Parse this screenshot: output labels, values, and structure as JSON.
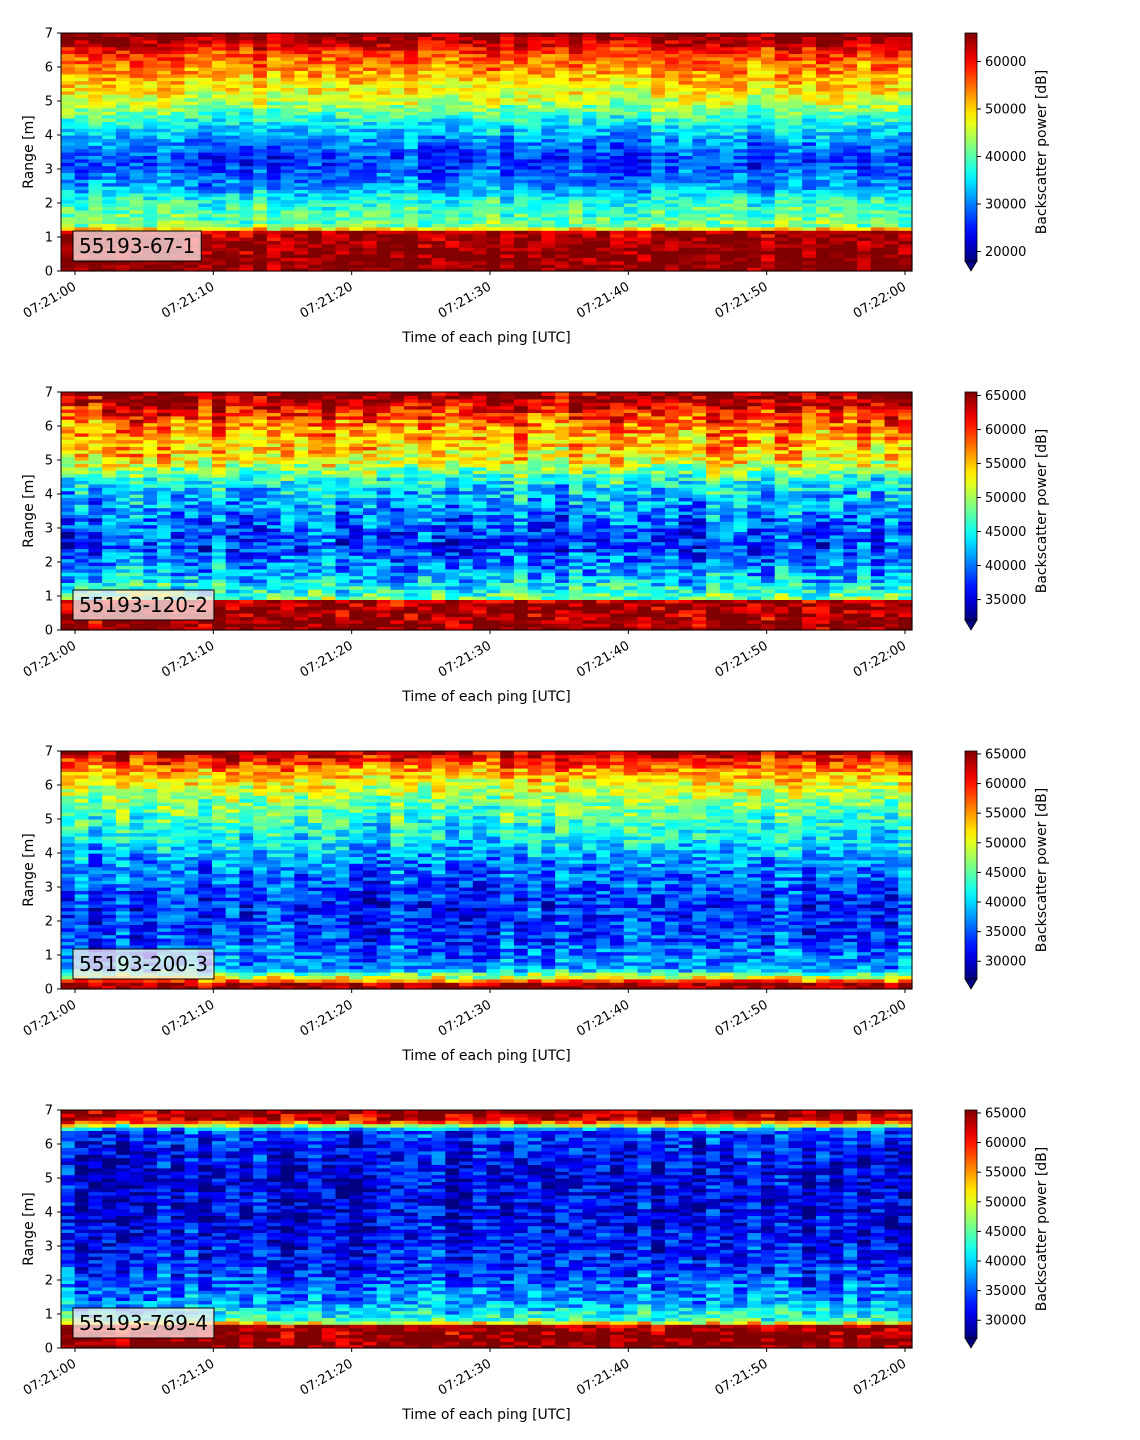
{
  "chart_data": [
    {
      "type": "heatmap",
      "sensor_label": "55193-67-1",
      "xlabel": "Time of each ping [UTC]",
      "ylabel": "Range [m]",
      "colorbar_label": "Backscatter power [dB]",
      "colormap": "jet",
      "x_ticks": [
        "07:21:00",
        "07:21:10",
        "07:21:20",
        "07:21:30",
        "07:21:40",
        "07:21:50",
        "07:22:00"
      ],
      "y_ticks": [
        0,
        1,
        2,
        3,
        4,
        5,
        6,
        7
      ],
      "ylim": [
        0,
        7
      ],
      "colorbar_ticks": [
        20000,
        30000,
        40000,
        50000,
        60000
      ],
      "clim": [
        18000,
        66000
      ],
      "profile": [
        {
          "range": 0.0,
          "value": 66000
        },
        {
          "range": 0.25,
          "value": 66000
        },
        {
          "range": 1.15,
          "value": 64000
        },
        {
          "range": 1.3,
          "value": 42000
        },
        {
          "range": 2.0,
          "value": 38000
        },
        {
          "range": 2.5,
          "value": 31000
        },
        {
          "range": 3.3,
          "value": 26000
        },
        {
          "range": 4.2,
          "value": 34000
        },
        {
          "range": 5.0,
          "value": 45000
        },
        {
          "range": 5.8,
          "value": 52000
        },
        {
          "range": 6.4,
          "value": 57000
        },
        {
          "range": 6.8,
          "value": 64000
        },
        {
          "range": 7.0,
          "value": 66000
        }
      ]
    },
    {
      "type": "heatmap",
      "sensor_label": "55193-120-2",
      "xlabel": "Time of each ping [UTC]",
      "ylabel": "Range [m]",
      "colorbar_label": "Backscatter power [dB]",
      "colormap": "jet",
      "x_ticks": [
        "07:21:00",
        "07:21:10",
        "07:21:20",
        "07:21:30",
        "07:21:40",
        "07:21:50",
        "07:22:00"
      ],
      "y_ticks": [
        0,
        1,
        2,
        3,
        4,
        5,
        6,
        7
      ],
      "ylim": [
        0,
        7
      ],
      "colorbar_ticks": [
        35000,
        40000,
        45000,
        50000,
        55000,
        60000,
        65000
      ],
      "clim": [
        32000,
        65500
      ],
      "profile": [
        {
          "range": 0.0,
          "value": 65500
        },
        {
          "range": 0.25,
          "value": 65500
        },
        {
          "range": 0.85,
          "value": 64000
        },
        {
          "range": 0.95,
          "value": 48000
        },
        {
          "range": 1.5,
          "value": 43000
        },
        {
          "range": 2.5,
          "value": 38000
        },
        {
          "range": 3.3,
          "value": 40000
        },
        {
          "range": 4.3,
          "value": 44000
        },
        {
          "range": 5.0,
          "value": 53000
        },
        {
          "range": 6.0,
          "value": 57000
        },
        {
          "range": 6.7,
          "value": 63000
        },
        {
          "range": 7.0,
          "value": 65500
        }
      ]
    },
    {
      "type": "heatmap",
      "sensor_label": "55193-200-3",
      "xlabel": "Time of each ping [UTC]",
      "ylabel": "Range [m]",
      "colorbar_label": "Backscatter power [dB]",
      "colormap": "jet",
      "x_ticks": [
        "07:21:00",
        "07:21:10",
        "07:21:20",
        "07:21:30",
        "07:21:40",
        "07:21:50",
        "07:22:00"
      ],
      "y_ticks": [
        0,
        1,
        2,
        3,
        4,
        5,
        6,
        7
      ],
      "ylim": [
        0,
        7
      ],
      "colorbar_ticks": [
        30000,
        35000,
        40000,
        45000,
        50000,
        55000,
        60000,
        65000
      ],
      "clim": [
        27000,
        65500
      ],
      "profile": [
        {
          "range": 0.0,
          "value": 65500
        },
        {
          "range": 0.15,
          "value": 64000
        },
        {
          "range": 0.35,
          "value": 50000
        },
        {
          "range": 0.6,
          "value": 38000
        },
        {
          "range": 1.5,
          "value": 34000
        },
        {
          "range": 2.5,
          "value": 33000
        },
        {
          "range": 3.5,
          "value": 36000
        },
        {
          "range": 4.5,
          "value": 41000
        },
        {
          "range": 5.5,
          "value": 46000
        },
        {
          "range": 6.3,
          "value": 53000
        },
        {
          "range": 6.8,
          "value": 60000
        },
        {
          "range": 7.0,
          "value": 64000
        }
      ]
    },
    {
      "type": "heatmap",
      "sensor_label": "55193-769-4",
      "xlabel": "Time of each ping [UTC]",
      "ylabel": "Range [m]",
      "colorbar_label": "Backscatter power [dB]",
      "colormap": "jet",
      "x_ticks": [
        "07:21:00",
        "07:21:10",
        "07:21:20",
        "07:21:30",
        "07:21:40",
        "07:21:50",
        "07:22:00"
      ],
      "y_ticks": [
        0,
        1,
        2,
        3,
        4,
        5,
        6,
        7
      ],
      "ylim": [
        0,
        7
      ],
      "colorbar_ticks": [
        30000,
        35000,
        40000,
        45000,
        50000,
        55000,
        60000,
        65000
      ],
      "clim": [
        27000,
        65500
      ],
      "profile": [
        {
          "range": 0.0,
          "value": 65500
        },
        {
          "range": 0.25,
          "value": 65500
        },
        {
          "range": 0.65,
          "value": 64000
        },
        {
          "range": 0.8,
          "value": 44000
        },
        {
          "range": 1.3,
          "value": 38000
        },
        {
          "range": 2.5,
          "value": 33000
        },
        {
          "range": 4.0,
          "value": 31000
        },
        {
          "range": 5.5,
          "value": 31500
        },
        {
          "range": 6.4,
          "value": 34000
        },
        {
          "range": 6.7,
          "value": 62000
        },
        {
          "range": 7.0,
          "value": 65000
        }
      ]
    }
  ]
}
